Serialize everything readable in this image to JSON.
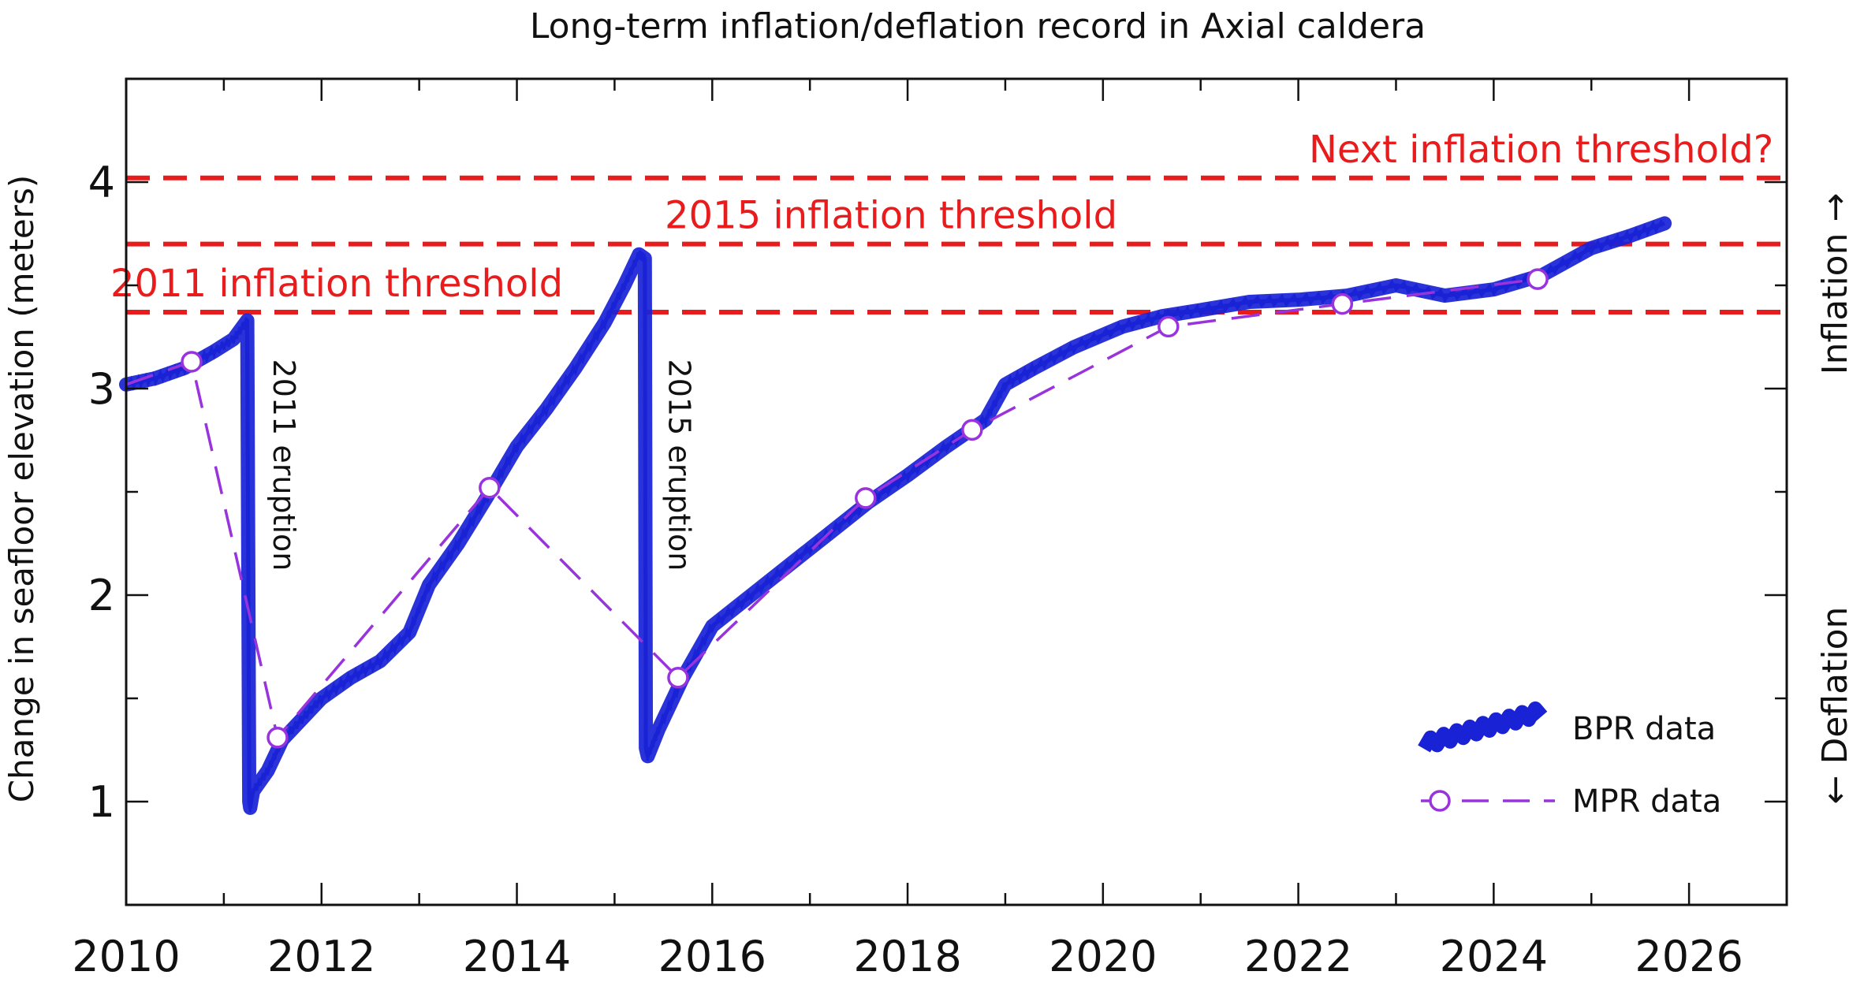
{
  "chart_data": {
    "type": "line",
    "title": "Long-term inflation/deflation record in Axial caldera",
    "xlabel": "",
    "ylabel": "Change in seafloor elevation (meters)",
    "xlim": [
      2010,
      2027
    ],
    "ylim": [
      0.5,
      4.5
    ],
    "xticks": [
      2010,
      2012,
      2014,
      2016,
      2018,
      2020,
      2022,
      2024,
      2026
    ],
    "yticks": [
      1,
      2,
      3,
      4
    ],
    "right_labels": {
      "inflation": "Inflation →",
      "deflation": "← Deflation"
    },
    "thresholds": [
      {
        "name": "Next inflation threshold?",
        "y": 4.02
      },
      {
        "name": "2015 inflation threshold",
        "y": 3.7
      },
      {
        "name": "2011 inflation threshold",
        "y": 3.37
      }
    ],
    "annotations": [
      {
        "text": "2011 eruption",
        "x": 2011.25
      },
      {
        "text": "2015 eruption",
        "x": 2015.3
      }
    ],
    "series": [
      {
        "name": "BPR data",
        "color": "#1a22d6",
        "points": [
          [
            2010.0,
            3.02
          ],
          [
            2010.3,
            3.05
          ],
          [
            2010.6,
            3.1
          ],
          [
            2010.9,
            3.18
          ],
          [
            2011.1,
            3.24
          ],
          [
            2011.24,
            3.33
          ],
          [
            2011.26,
            1.0
          ],
          [
            2011.27,
            0.97
          ],
          [
            2011.3,
            1.05
          ],
          [
            2011.45,
            1.15
          ],
          [
            2011.6,
            1.3
          ],
          [
            2011.8,
            1.4
          ],
          [
            2012.0,
            1.5
          ],
          [
            2012.3,
            1.6
          ],
          [
            2012.6,
            1.68
          ],
          [
            2012.9,
            1.82
          ],
          [
            2013.1,
            2.05
          ],
          [
            2013.4,
            2.25
          ],
          [
            2013.7,
            2.48
          ],
          [
            2014.0,
            2.72
          ],
          [
            2014.3,
            2.9
          ],
          [
            2014.6,
            3.1
          ],
          [
            2014.9,
            3.32
          ],
          [
            2015.1,
            3.5
          ],
          [
            2015.25,
            3.65
          ],
          [
            2015.31,
            3.63
          ],
          [
            2015.32,
            1.26
          ],
          [
            2015.34,
            1.22
          ],
          [
            2015.45,
            1.35
          ],
          [
            2015.7,
            1.6
          ],
          [
            2016.0,
            1.85
          ],
          [
            2016.4,
            2.0
          ],
          [
            2016.8,
            2.15
          ],
          [
            2017.2,
            2.3
          ],
          [
            2017.6,
            2.45
          ],
          [
            2018.0,
            2.58
          ],
          [
            2018.4,
            2.72
          ],
          [
            2018.8,
            2.85
          ],
          [
            2019.0,
            3.02
          ],
          [
            2019.3,
            3.1
          ],
          [
            2019.7,
            3.2
          ],
          [
            2020.2,
            3.3
          ],
          [
            2020.6,
            3.35
          ],
          [
            2021.0,
            3.38
          ],
          [
            2021.5,
            3.42
          ],
          [
            2022.0,
            3.43
          ],
          [
            2022.5,
            3.45
          ],
          [
            2023.0,
            3.5
          ],
          [
            2023.5,
            3.45
          ],
          [
            2024.0,
            3.48
          ],
          [
            2024.5,
            3.55
          ],
          [
            2025.0,
            3.68
          ],
          [
            2025.4,
            3.74
          ],
          [
            2025.75,
            3.8
          ]
        ]
      },
      {
        "name": "MPR data",
        "color": "#9933dd",
        "points": [
          [
            2010.0,
            3.02
          ],
          [
            2010.67,
            3.13
          ],
          [
            2011.55,
            1.31
          ],
          [
            2013.72,
            2.52
          ],
          [
            2015.65,
            1.6
          ],
          [
            2017.57,
            2.47
          ],
          [
            2018.66,
            2.8
          ],
          [
            2020.67,
            3.3
          ],
          [
            2022.45,
            3.41
          ],
          [
            2024.45,
            3.53
          ]
        ]
      }
    ]
  }
}
